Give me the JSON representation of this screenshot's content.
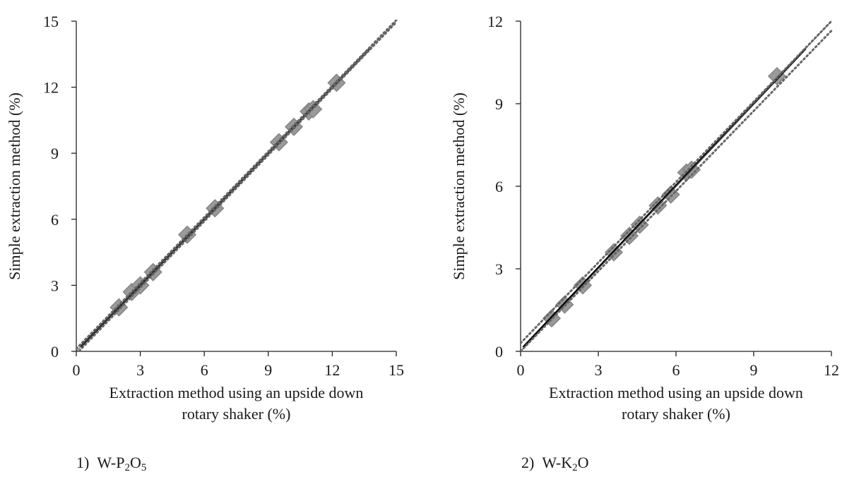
{
  "chart_data": [
    {
      "type": "scatter",
      "caption_number": "1)",
      "caption_species": {
        "prefix": "W-P",
        "sub1": "2",
        "mid": "O",
        "sub2": "5"
      },
      "xlabel_lines": [
        "Extraction method using an upside down",
        "rotary shaker (%)"
      ],
      "ylabel": "Simple extraction method (%)",
      "xlim": [
        0,
        15
      ],
      "ylim": [
        0,
        15
      ],
      "xticks": [
        0,
        3,
        6,
        9,
        12,
        15
      ],
      "yticks": [
        0,
        3,
        6,
        9,
        12,
        15
      ],
      "grid": false,
      "points": [
        {
          "x": 2.0,
          "y": 2.0
        },
        {
          "x": 2.6,
          "y": 2.7
        },
        {
          "x": 3.0,
          "y": 3.0
        },
        {
          "x": 3.6,
          "y": 3.6
        },
        {
          "x": 5.2,
          "y": 5.3
        },
        {
          "x": 6.5,
          "y": 6.5
        },
        {
          "x": 9.5,
          "y": 9.5
        },
        {
          "x": 10.2,
          "y": 10.2
        },
        {
          "x": 10.9,
          "y": 10.9
        },
        {
          "x": 11.1,
          "y": 11.0
        },
        {
          "x": 12.2,
          "y": 12.2
        }
      ],
      "lines": [
        {
          "kind": "regression",
          "x": [
            0.2,
            13.8
          ],
          "y": [
            0.2,
            13.8
          ]
        },
        {
          "kind": "reference",
          "x": [
            0,
            15
          ],
          "y": [
            0,
            15
          ]
        },
        {
          "kind": "confidence-upper",
          "x": [
            0,
            15
          ],
          "y": [
            0.12,
            15.05
          ]
        },
        {
          "kind": "confidence-lower",
          "x": [
            0,
            15
          ],
          "y": [
            -0.12,
            14.95
          ]
        }
      ]
    },
    {
      "type": "scatter",
      "caption_number": "2)",
      "caption_species": {
        "prefix": "W-K",
        "sub1": "2",
        "mid": "O",
        "sub2": ""
      },
      "xlabel_lines": [
        "Extraction method using an upside down",
        "rotary shaker (%)"
      ],
      "ylabel": "Simple extraction method  (%)",
      "xlim": [
        0,
        12
      ],
      "ylim": [
        0,
        12
      ],
      "xticks": [
        0,
        3,
        6,
        9,
        12
      ],
      "yticks": [
        0,
        3,
        6,
        9,
        12
      ],
      "grid": false,
      "points": [
        {
          "x": 1.2,
          "y": 1.2
        },
        {
          "x": 1.7,
          "y": 1.7
        },
        {
          "x": 2.4,
          "y": 2.4
        },
        {
          "x": 3.6,
          "y": 3.6
        },
        {
          "x": 4.2,
          "y": 4.2
        },
        {
          "x": 4.6,
          "y": 4.6
        },
        {
          "x": 5.3,
          "y": 5.3
        },
        {
          "x": 5.8,
          "y": 5.7
        },
        {
          "x": 6.4,
          "y": 6.5
        },
        {
          "x": 6.6,
          "y": 6.6
        },
        {
          "x": 9.9,
          "y": 10.0
        }
      ],
      "lines": [
        {
          "kind": "regression",
          "x": [
            0.1,
            11.0
          ],
          "y": [
            0.15,
            11.0
          ]
        },
        {
          "kind": "reference",
          "x": [
            0,
            12
          ],
          "y": [
            0,
            12
          ]
        },
        {
          "kind": "confidence-upper",
          "x": [
            0,
            12
          ],
          "y": [
            0.3,
            12.0
          ]
        },
        {
          "kind": "confidence-lower",
          "x": [
            0,
            12
          ],
          "y": [
            0.0,
            11.65
          ]
        }
      ]
    }
  ]
}
